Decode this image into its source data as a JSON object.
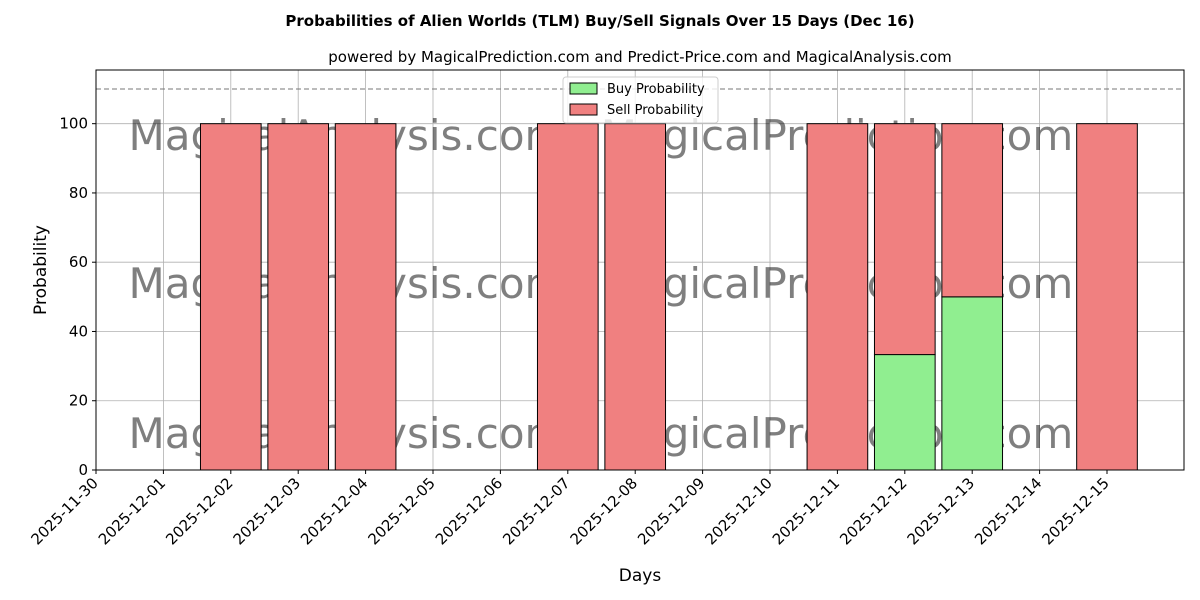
{
  "chart_data": {
    "type": "bar",
    "stacked": true,
    "title": "Probabilities of Alien Worlds (TLM) Buy/Sell Signals Over 15 Days (Dec 16)",
    "subtitle": "powered by MagicalPrediction.com and Predict-Price.com and MagicalAnalysis.com",
    "xlabel": "Days",
    "ylabel": "Probability",
    "ylim": [
      0,
      115.5
    ],
    "yticks": [
      0,
      20,
      40,
      60,
      80,
      100
    ],
    "xticks": [
      "2025-11-30",
      "2025-12-01",
      "2025-12-02",
      "2025-12-03",
      "2025-12-04",
      "2025-12-05",
      "2025-12-06",
      "2025-12-07",
      "2025-12-08",
      "2025-12-09",
      "2025-12-10",
      "2025-12-11",
      "2025-12-12",
      "2025-12-13",
      "2025-12-14",
      "2025-12-15"
    ],
    "grid": true,
    "threshold_line": 110,
    "legend_position": "top-center",
    "categories": [
      "2025-12-02",
      "2025-12-03",
      "2025-12-04",
      "2025-12-07",
      "2025-12-08",
      "2025-12-11",
      "2025-12-12",
      "2025-12-13",
      "2025-12-15"
    ],
    "series": [
      {
        "name": "Buy Probability",
        "color": "#90ee90",
        "values": [
          0,
          0,
          0,
          0,
          0,
          0,
          33.33,
          50,
          0
        ]
      },
      {
        "name": "Sell Probability",
        "color": "#f08080",
        "values": [
          100,
          100,
          100,
          100,
          100,
          100,
          66.67,
          50,
          100
        ]
      }
    ],
    "watermarks": [
      "MagicalAnalysis.com",
      "MagicalPrediction.com"
    ]
  }
}
